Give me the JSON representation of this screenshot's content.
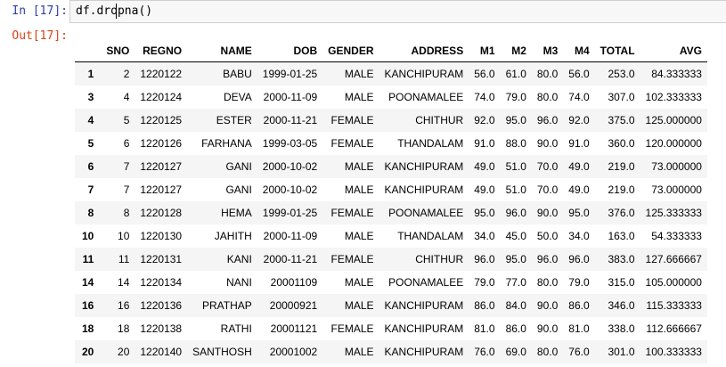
{
  "input_cell": {
    "prompt": "In [17]:",
    "code": "df.dropna()"
  },
  "output_cell": {
    "prompt": "Out[17]:"
  },
  "table": {
    "index_header": "",
    "columns": [
      "SNO",
      "REGNO",
      "NAME",
      "DOB",
      "GENDER",
      "ADDRESS",
      "M1",
      "M2",
      "M3",
      "M4",
      "TOTAL",
      "AVG"
    ],
    "rows": [
      {
        "index": "1",
        "cells": [
          "2",
          "1220122",
          "BABU",
          "1999-01-25",
          "MALE",
          "KANCHIPURAM",
          "56.0",
          "61.0",
          "80.0",
          "56.0",
          "253.0",
          "84.333333"
        ]
      },
      {
        "index": "3",
        "cells": [
          "4",
          "1220124",
          "DEVA",
          "2000-11-09",
          "MALE",
          "POONAMALEE",
          "74.0",
          "79.0",
          "80.0",
          "74.0",
          "307.0",
          "102.333333"
        ]
      },
      {
        "index": "4",
        "cells": [
          "5",
          "1220125",
          "ESTER",
          "2000-11-21",
          "FEMALE",
          "CHITHUR",
          "92.0",
          "95.0",
          "96.0",
          "92.0",
          "375.0",
          "125.000000"
        ]
      },
      {
        "index": "5",
        "cells": [
          "6",
          "1220126",
          "FARHANA",
          "1999-03-05",
          "FEMALE",
          "THANDALAM",
          "91.0",
          "88.0",
          "90.0",
          "91.0",
          "360.0",
          "120.000000"
        ]
      },
      {
        "index": "6",
        "cells": [
          "7",
          "1220127",
          "GANI",
          "2000-10-02",
          "MALE",
          "KANCHIPURAM",
          "49.0",
          "51.0",
          "70.0",
          "49.0",
          "219.0",
          "73.000000"
        ]
      },
      {
        "index": "7",
        "cells": [
          "7",
          "1220127",
          "GANI",
          "2000-10-02",
          "MALE",
          "KANCHIPURAM",
          "49.0",
          "51.0",
          "70.0",
          "49.0",
          "219.0",
          "73.000000"
        ]
      },
      {
        "index": "8",
        "cells": [
          "8",
          "1220128",
          "HEMA",
          "1999-01-25",
          "FEMALE",
          "POONAMALEE",
          "95.0",
          "96.0",
          "90.0",
          "95.0",
          "376.0",
          "125.333333"
        ]
      },
      {
        "index": "10",
        "cells": [
          "10",
          "1220130",
          "JAHITH",
          "2000-11-09",
          "MALE",
          "THANDALAM",
          "34.0",
          "45.0",
          "50.0",
          "34.0",
          "163.0",
          "54.333333"
        ]
      },
      {
        "index": "11",
        "cells": [
          "11",
          "1220131",
          "KANI",
          "2000-11-21",
          "FEMALE",
          "CHITHUR",
          "96.0",
          "95.0",
          "96.0",
          "96.0",
          "383.0",
          "127.666667"
        ]
      },
      {
        "index": "14",
        "cells": [
          "14",
          "1220134",
          "NANI",
          "20001109",
          "MALE",
          "POONAMALEE",
          "79.0",
          "77.0",
          "80.0",
          "79.0",
          "315.0",
          "105.000000"
        ]
      },
      {
        "index": "16",
        "cells": [
          "16",
          "1220136",
          "PRATHAP",
          "20000921",
          "MALE",
          "KANCHIPURAM",
          "86.0",
          "84.0",
          "90.0",
          "86.0",
          "346.0",
          "115.333333"
        ]
      },
      {
        "index": "18",
        "cells": [
          "18",
          "1220138",
          "RATHI",
          "20001121",
          "FEMALE",
          "KANCHIPURAM",
          "81.0",
          "86.0",
          "90.0",
          "81.0",
          "338.0",
          "112.666667"
        ]
      },
      {
        "index": "20",
        "cells": [
          "20",
          "1220140",
          "SANTHOSH",
          "20001002",
          "MALE",
          "KANCHIPURAM",
          "76.0",
          "69.0",
          "80.0",
          "76.0",
          "301.0",
          "100.333333"
        ]
      }
    ]
  }
}
